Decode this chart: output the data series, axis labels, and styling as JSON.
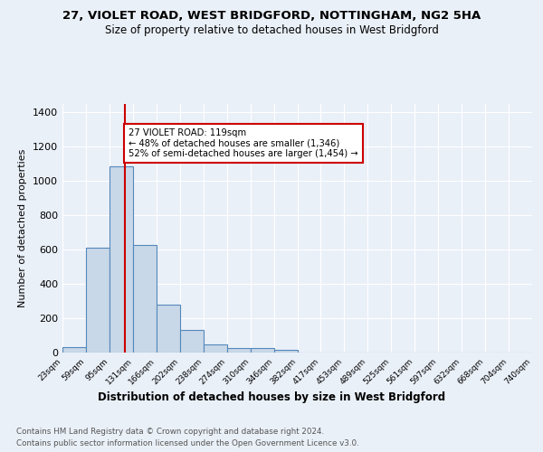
{
  "title_line1": "27, VIOLET ROAD, WEST BRIDGFORD, NOTTINGHAM, NG2 5HA",
  "title_line2": "Size of property relative to detached houses in West Bridgford",
  "xlabel": "Distribution of detached houses by size in West Bridgford",
  "ylabel": "Number of detached properties",
  "bin_labels": [
    "23sqm",
    "59sqm",
    "95sqm",
    "131sqm",
    "166sqm",
    "202sqm",
    "238sqm",
    "274sqm",
    "310sqm",
    "346sqm",
    "382sqm",
    "417sqm",
    "453sqm",
    "489sqm",
    "525sqm",
    "561sqm",
    "597sqm",
    "632sqm",
    "668sqm",
    "704sqm",
    "740sqm"
  ],
  "bar_heights": [
    30,
    610,
    1085,
    630,
    280,
    130,
    48,
    25,
    25,
    15,
    0,
    0,
    0,
    0,
    0,
    0,
    0,
    0,
    0,
    0
  ],
  "bar_color": "#c8d8e8",
  "bar_edge_color": "#5588bb",
  "bar_edge_width": 0.8,
  "vline_x": 119,
  "vline_color": "#cc0000",
  "annotation_text": "27 VIOLET ROAD: 119sqm\n← 48% of detached houses are smaller (1,346)\n52% of semi-detached houses are larger (1,454) →",
  "annotation_box_color": "#ffffff",
  "annotation_box_edge_color": "#cc0000",
  "ylim": [
    0,
    1450
  ],
  "yticks": [
    0,
    200,
    400,
    600,
    800,
    1000,
    1200,
    1400
  ],
  "bin_edges": [
    23,
    59,
    95,
    131,
    166,
    202,
    238,
    274,
    310,
    346,
    382,
    417,
    453,
    489,
    525,
    561,
    597,
    632,
    668,
    704,
    740
  ],
  "footer_line1": "Contains HM Land Registry data © Crown copyright and database right 2024.",
  "footer_line2": "Contains public sector information licensed under the Open Government Licence v3.0.",
  "background_color": "#eaf0f8",
  "plot_bg_color": "#eaf0f8"
}
